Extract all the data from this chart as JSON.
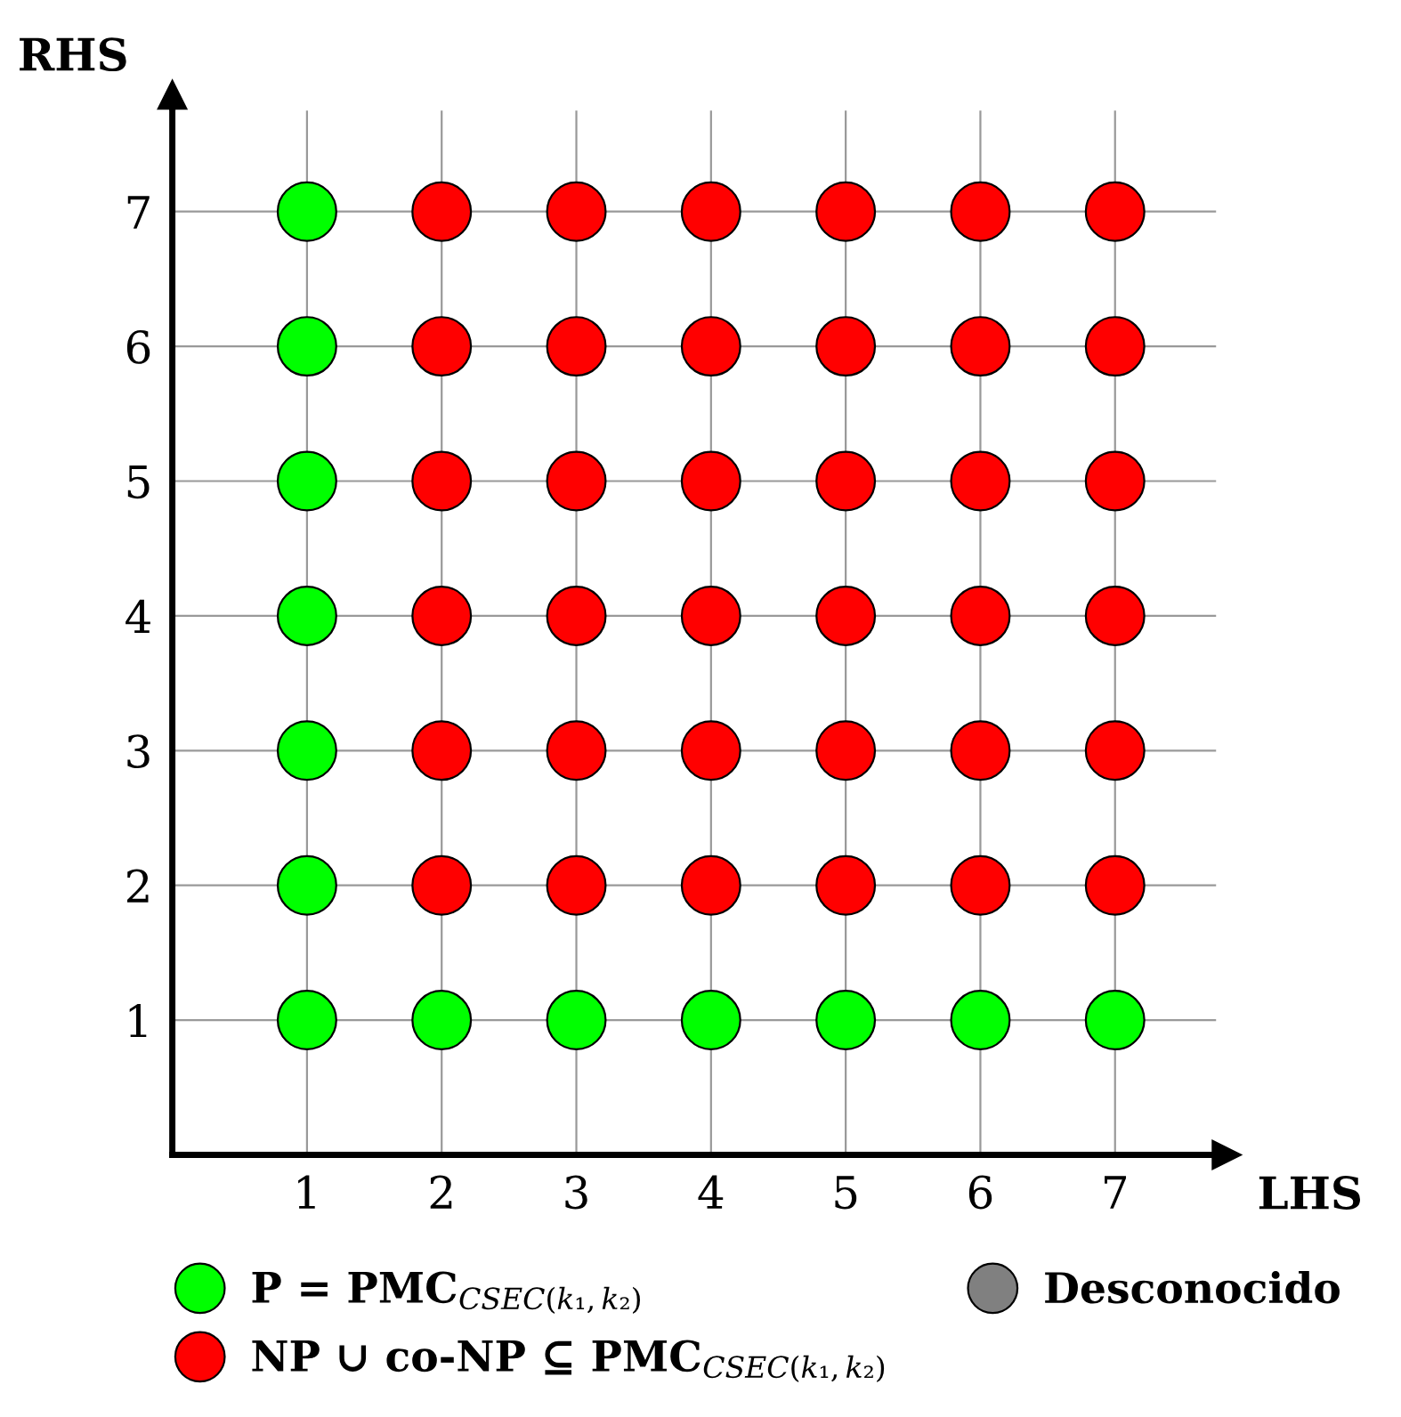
{
  "chart_data": {
    "type": "scatter",
    "xlabel": "LHS",
    "ylabel": "RHS",
    "xlim": [
      0,
      7.75
    ],
    "ylim": [
      0,
      7.75
    ],
    "xticks": [
      1,
      2,
      3,
      4,
      5,
      6,
      7
    ],
    "yticks": [
      1,
      2,
      3,
      4,
      5,
      6,
      7
    ],
    "grid": true,
    "legend": "bottom",
    "marker": "circle",
    "series": [
      {
        "name": "P = PMC$_{CSEC(k₁,k₂)}$",
        "color": "#00ff00",
        "x": [
          1,
          1,
          1,
          1,
          1,
          1,
          1,
          2,
          3,
          4,
          5,
          6,
          7
        ],
        "values": [
          1,
          2,
          3,
          4,
          5,
          6,
          7,
          1,
          1,
          1,
          1,
          1,
          1
        ]
      },
      {
        "name": "NP ∪ co-NP ⊆ PMC$_{CSEC(k₁,k₂)}$",
        "color": "#ff0000",
        "x": [
          2,
          2,
          2,
          2,
          2,
          2,
          3,
          3,
          3,
          3,
          3,
          3,
          4,
          4,
          4,
          4,
          4,
          4,
          5,
          5,
          5,
          5,
          5,
          5,
          6,
          6,
          6,
          6,
          6,
          6,
          7,
          7,
          7,
          7,
          7,
          7
        ],
        "values": [
          2,
          3,
          4,
          5,
          6,
          7,
          2,
          3,
          4,
          5,
          6,
          7,
          2,
          3,
          4,
          5,
          6,
          7,
          2,
          3,
          4,
          5,
          6,
          7,
          2,
          3,
          4,
          5,
          6,
          7,
          2,
          3,
          4,
          5,
          6,
          7
        ]
      },
      {
        "name": "Desconocido",
        "color": "#808080"
      }
    ]
  }
}
